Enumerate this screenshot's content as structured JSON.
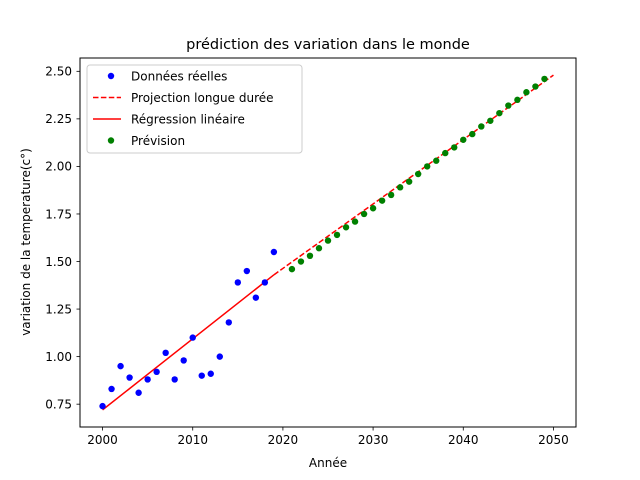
{
  "chart_data": {
    "type": "scatter",
    "title": "prédiction des variation dans le monde",
    "xlabel": "Année",
    "ylabel": "variation de la temperature(c°)",
    "xlim": [
      1997.5,
      2052.5
    ],
    "ylim": [
      0.63,
      2.57
    ],
    "x_ticks": [
      2000,
      2010,
      2020,
      2030,
      2040,
      2050
    ],
    "x_tick_labels": [
      "2000",
      "2010",
      "2020",
      "2030",
      "2040",
      "2050"
    ],
    "y_ticks": [
      0.75,
      1.0,
      1.25,
      1.5,
      1.75,
      2.0,
      2.25,
      2.5
    ],
    "y_tick_labels": [
      "0.75",
      "1.00",
      "1.25",
      "1.50",
      "1.75",
      "2.00",
      "2.25",
      "2.50"
    ],
    "grid": false,
    "legend_position": "upper left",
    "colors": {
      "actual": "#0000ff",
      "projection": "#ff0000",
      "regression": "#ff0000",
      "forecast": "#008000"
    },
    "series": [
      {
        "name": "Données réelles",
        "kind": "scatter",
        "color": "#0000ff",
        "x": [
          2000,
          2001,
          2002,
          2003,
          2004,
          2005,
          2006,
          2007,
          2008,
          2009,
          2010,
          2011,
          2012,
          2013,
          2014,
          2015,
          2016,
          2017,
          2018,
          2019
        ],
        "y": [
          0.74,
          0.83,
          0.95,
          0.89,
          0.81,
          0.88,
          0.92,
          1.02,
          0.88,
          0.98,
          1.1,
          0.9,
          0.91,
          1.0,
          1.18,
          1.39,
          1.45,
          1.31,
          1.39,
          1.55
        ]
      },
      {
        "name": "Projection longue durée",
        "kind": "dashed-line",
        "color": "#ff0000",
        "x": [
          2019,
          2050
        ],
        "y": [
          1.43,
          2.48
        ]
      },
      {
        "name": "Régression linéaire",
        "kind": "line",
        "color": "#ff0000",
        "x": [
          2000,
          2019
        ],
        "y": [
          0.72,
          1.43
        ]
      },
      {
        "name": "Prévision",
        "kind": "scatter",
        "color": "#008000",
        "x": [
          2021,
          2022,
          2023,
          2024,
          2025,
          2026,
          2027,
          2028,
          2029,
          2030,
          2031,
          2032,
          2033,
          2034,
          2035,
          2036,
          2037,
          2038,
          2039,
          2040,
          2041,
          2042,
          2043,
          2044,
          2045,
          2046,
          2047,
          2048,
          2049
        ],
        "y": [
          1.46,
          1.5,
          1.53,
          1.57,
          1.61,
          1.64,
          1.68,
          1.71,
          1.75,
          1.78,
          1.82,
          1.85,
          1.89,
          1.92,
          1.96,
          2.0,
          2.03,
          2.07,
          2.1,
          2.14,
          2.17,
          2.21,
          2.24,
          2.28,
          2.32,
          2.35,
          2.39,
          2.42,
          2.46
        ]
      }
    ]
  }
}
